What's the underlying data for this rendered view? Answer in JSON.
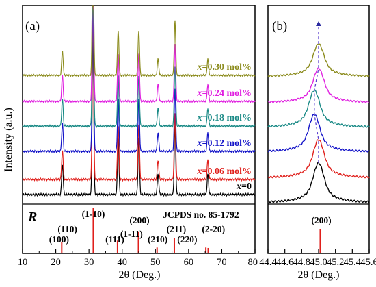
{
  "chart_data": [
    {
      "panel_label": "(a)",
      "type": "line",
      "xlabel": "2θ (Deg.)",
      "ylabel": "Intensity (a.u.)",
      "xlim": [
        10,
        80
      ],
      "x_ticks": [
        "10",
        "20",
        "30",
        "40",
        "50",
        "60",
        "70",
        "80"
      ],
      "peaks_2theta": [
        22.0,
        31.2,
        38.8,
        45.0,
        50.8,
        55.9,
        65.8
      ],
      "series": [
        {
          "name": "x=0",
          "label_prefix": "x",
          "label_value": "=0",
          "color": "#000000",
          "peak_intensity": [
            0.18,
            1.0,
            0.33,
            0.33,
            0.12,
            0.4,
            0.12
          ]
        },
        {
          "name": "x=0.06 mol%",
          "label_prefix": "x",
          "label_value": "=0.06 mol%",
          "color": "#e0201c",
          "peak_intensity": [
            0.18,
            1.0,
            0.33,
            0.33,
            0.12,
            0.4,
            0.12
          ]
        },
        {
          "name": "x=0.12 mol%",
          "label_prefix": "x",
          "label_value": "=0.12 mol%",
          "color": "#1414c8",
          "peak_intensity": [
            0.18,
            1.0,
            0.33,
            0.33,
            0.12,
            0.4,
            0.12
          ]
        },
        {
          "name": "x=0.18 mol%",
          "label_prefix": "x",
          "label_value": "=0.18 mol%",
          "color": "#1a8a86",
          "peak_intensity": [
            0.18,
            1.0,
            0.33,
            0.33,
            0.12,
            0.4,
            0.12
          ]
        },
        {
          "name": "x=0.24 mol%",
          "label_prefix": "x",
          "label_value": "=0.24 mol%",
          "color": "#e020e0",
          "peak_intensity": [
            0.18,
            1.0,
            0.33,
            0.33,
            0.12,
            0.4,
            0.12
          ]
        },
        {
          "name": "x=0.30 mol%",
          "label_prefix": "x",
          "label_value": "=0.30 mol%",
          "color": "#8c8c1e",
          "peak_intensity": [
            0.18,
            1.0,
            0.33,
            0.33,
            0.12,
            0.4,
            0.12
          ]
        }
      ],
      "reference": {
        "marker": "R",
        "title": "JCPDS no. 85-1792",
        "color": "#e0201c",
        "lines": [
          {
            "x": 21.8,
            "intensity": 0.25,
            "labels": [
              "(100)",
              "(110)"
            ]
          },
          {
            "x": 31.3,
            "intensity": 1.0,
            "labels": [
              "(1-10)"
            ]
          },
          {
            "x": 38.6,
            "intensity": 0.28,
            "labels": [
              "(111)",
              "(1-11)"
            ]
          },
          {
            "x": 44.9,
            "intensity": 0.48,
            "labels": [
              "(200)"
            ]
          },
          {
            "x": 50.5,
            "intensity": 0.13,
            "labels": [
              "(210)"
            ]
          },
          {
            "x": 55.7,
            "intensity": 0.34,
            "labels": [
              "(211)"
            ]
          },
          {
            "x": 65.2,
            "intensity": 0.13,
            "labels": [
              "(220)"
            ]
          },
          {
            "x": 65.9,
            "intensity": 0.12,
            "labels": [
              "(2-20)"
            ]
          }
        ]
      }
    },
    {
      "panel_label": "(b)",
      "type": "line",
      "xlabel": "2θ (Deg.)",
      "xlim": [
        44.4,
        45.6
      ],
      "x_ticks": [
        "44.4",
        "44.6",
        "44.8",
        "45.0",
        "45.2",
        "45.4",
        "45.6"
      ],
      "peak_center_2theta": [
        45.0,
        45.0,
        44.95,
        44.95,
        45.0,
        45.0
      ],
      "series_colors": [
        "#000000",
        "#e0201c",
        "#1414c8",
        "#1a8a86",
        "#e020e0",
        "#8c8c1e"
      ],
      "reference": {
        "x": 45.02,
        "label": "(200)",
        "color": "#e0201c"
      }
    }
  ]
}
